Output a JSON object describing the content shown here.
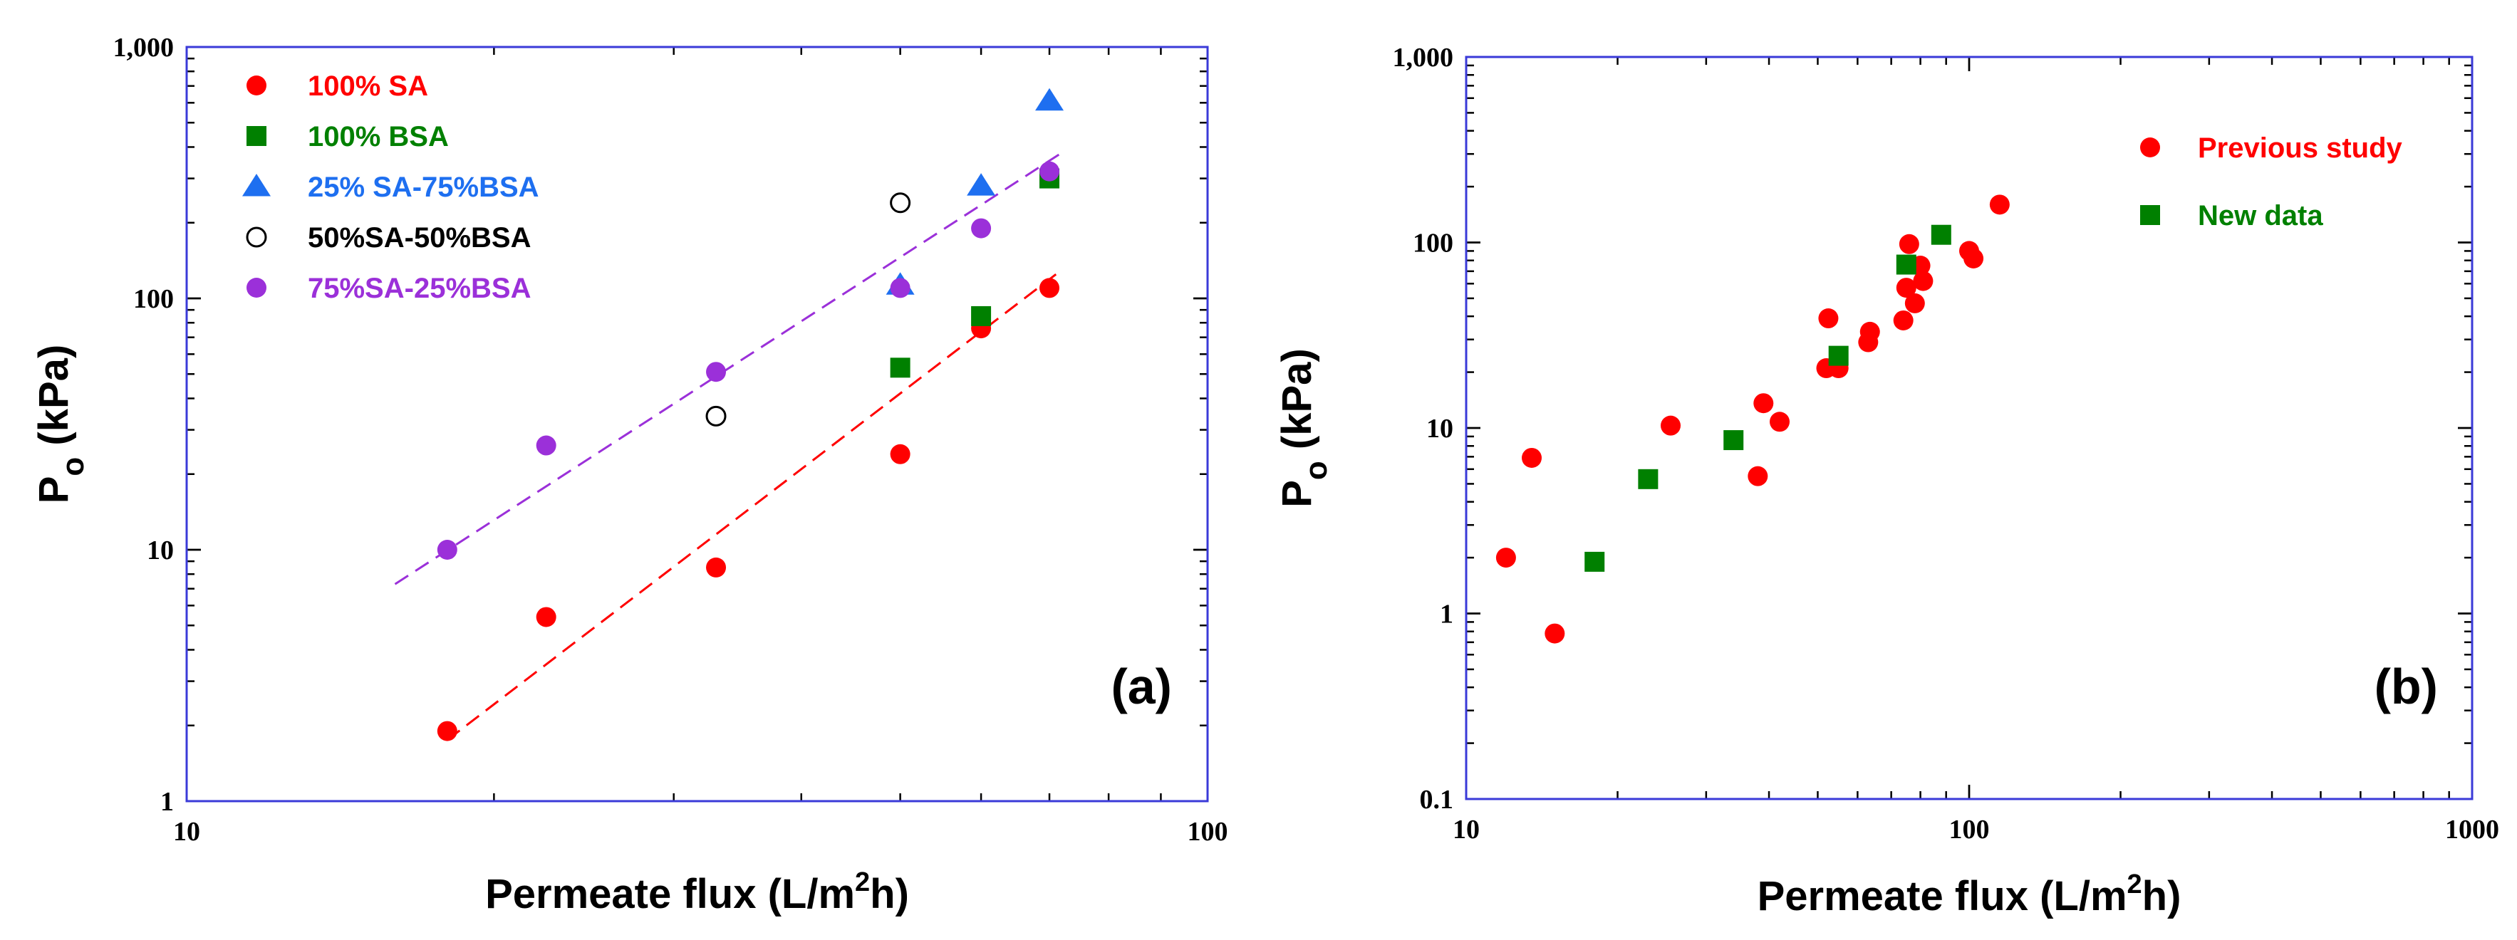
{
  "chart_data": [
    {
      "type": "scatter",
      "panel_label": "(a)",
      "xscale": "log",
      "yscale": "log",
      "xlim": [
        10,
        100
      ],
      "ylim": [
        1,
        1000
      ],
      "xticks": [
        10,
        100
      ],
      "xtick_labels": [
        "10",
        "100"
      ],
      "yticks": [
        1,
        10,
        100,
        1000
      ],
      "ytick_labels": [
        "1",
        "10",
        "100",
        "1,000"
      ],
      "xlabel_main": "Permeate flux (L/m",
      "xlabel_sup": "2",
      "xlabel_end": "h)",
      "ylabel_main": "P",
      "ylabel_sub": "o",
      "ylabel_end": " (kPa)",
      "legend_position": "top-left",
      "series": [
        {
          "name": "100% SA",
          "marker": "circle",
          "color": "#ff0000",
          "x": [
            18,
            22.5,
            33,
            50,
            60,
            70
          ],
          "y": [
            1.9,
            5.4,
            8.5,
            24,
            76,
            110
          ]
        },
        {
          "name": "100% BSA",
          "marker": "square",
          "color": "#008000",
          "x": [
            50,
            60,
            70
          ],
          "y": [
            53,
            85,
            300
          ]
        },
        {
          "name": "25% SA-75%BSA",
          "marker": "triangle",
          "color": "#1e6ff0",
          "x": [
            50,
            60,
            70
          ],
          "y": [
            113,
            280,
            610
          ]
        },
        {
          "name": "50%SA-50%BSA",
          "marker": "open-circle",
          "color": "#000000",
          "x": [
            33,
            50
          ],
          "y": [
            34,
            240
          ]
        },
        {
          "name": "75%SA-25%BSA",
          "marker": "circle",
          "color": "#9b30d9",
          "x": [
            18,
            22.5,
            33,
            50,
            60,
            70
          ],
          "y": [
            10,
            26,
            51,
            110,
            190,
            320
          ]
        }
      ],
      "fit_lines": [
        {
          "color": "#9b30d9",
          "x": [
            16,
            72
          ],
          "y": [
            7.3,
            380
          ]
        },
        {
          "color": "#ff0000",
          "x": [
            18,
            72
          ],
          "y": [
            1.75,
            130
          ]
        }
      ]
    },
    {
      "type": "scatter",
      "panel_label": "(b)",
      "xscale": "log",
      "yscale": "log",
      "xlim": [
        10,
        1000
      ],
      "ylim": [
        0.1,
        1000
      ],
      "xticks": [
        10,
        100,
        1000
      ],
      "xtick_labels": [
        "10",
        "100",
        "1000"
      ],
      "yticks": [
        0.1,
        1,
        10,
        100,
        1000
      ],
      "ytick_labels": [
        "0.1",
        "1",
        "10",
        "100",
        "1,000"
      ],
      "xlabel_main": "Permeate flux (L/m",
      "xlabel_sup": "2",
      "xlabel_end": "h)",
      "ylabel_main": "P",
      "ylabel_sub": "o",
      "ylabel_end": " (kPa)",
      "legend_position": "top-right",
      "series": [
        {
          "name": "Previous study",
          "marker": "circle",
          "color": "#ff0000",
          "x": [
            12,
            13.5,
            15,
            25.5,
            38,
            39,
            42,
            52,
            52.5,
            55,
            63,
            63.5,
            74,
            75,
            76,
            78,
            80,
            81,
            100,
            102,
            115
          ],
          "y": [
            2.0,
            6.9,
            0.78,
            10.3,
            5.5,
            13.6,
            10.8,
            21,
            39,
            21,
            29,
            33,
            38,
            57,
            98,
            47,
            75,
            62,
            90,
            82,
            160
          ]
        },
        {
          "name": "New data",
          "marker": "square",
          "color": "#008000",
          "x": [
            18,
            23,
            34,
            55,
            75,
            88
          ],
          "y": [
            1.9,
            5.3,
            8.6,
            24.5,
            76,
            110
          ]
        }
      ]
    }
  ]
}
